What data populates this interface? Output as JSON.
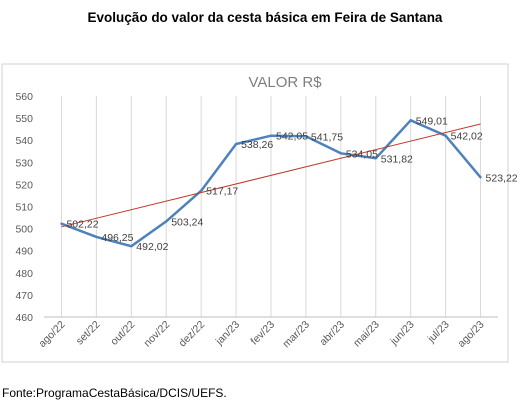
{
  "page_title": "Evolução do valor da cesta básica em Feira de Santana",
  "source": "Fonte:ProgramaCestaBásica/DCIS/UEFS.",
  "chart_data": {
    "type": "line",
    "title": "VALOR R$",
    "categories": [
      "ago/22",
      "set/22",
      "out/22",
      "nov/22",
      "dez/22",
      "jan/23",
      "fev/23",
      "mar/23",
      "abr/23",
      "mai/23",
      "jun/23",
      "jul/23",
      "ago/23"
    ],
    "series": [
      {
        "values": [
          502.22,
          496.25,
          492.02,
          503.24,
          517.17,
          538.26,
          542.05,
          541.75,
          534.05,
          531.82,
          549.01,
          542.02,
          523.22
        ],
        "labels": [
          "502,22",
          "496,25",
          "492,02",
          "503,24",
          "517,17",
          "538,26",
          "542,05",
          "541,75",
          "534,05",
          "531,82",
          "549,01",
          "542,02",
          "523,22"
        ],
        "color": "#4f81bd"
      }
    ],
    "trendline": {
      "type": "linear",
      "color": "#c0392b"
    },
    "ylim": [
      460,
      560
    ],
    "yticks": [
      460,
      470,
      480,
      490,
      500,
      510,
      520,
      530,
      540,
      550,
      560
    ],
    "grid": "vertical",
    "legend": "none"
  }
}
